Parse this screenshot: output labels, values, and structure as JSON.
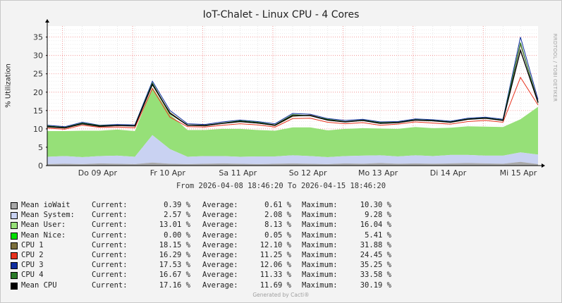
{
  "title": "IoT-Chalet - Linux CPU - 4 Cores",
  "vertical_label": "% Utilization",
  "watermark": "RRDTOOL / TOBI OETIKER",
  "range": "From 2026-04-08 18:46:20 To 2026-04-15 18:46:20",
  "footer": "Generated by Cacti®",
  "legend": {
    "columns": {
      "current": "Current:",
      "average": "Average:",
      "maximum": "Maximum:"
    },
    "items": [
      {
        "label": "Mean ioWait",
        "color": "#a8a8a8",
        "current": "0.39 %",
        "average": "0.61 %",
        "maximum": "10.30 %"
      },
      {
        "label": "Mean System:",
        "color": "#c9d2f2",
        "current": "2.57 %",
        "average": "2.08 %",
        "maximum": "9.28 %"
      },
      {
        "label": "Mean User:",
        "color": "#96e078",
        "current": "13.01 %",
        "average": "8.13 %",
        "maximum": "16.04 %"
      },
      {
        "label": "Mean Nice:",
        "color": "#00e000",
        "current": "0.00 %",
        "average": "0.05 %",
        "maximum": "5.41 %"
      },
      {
        "label": "CPU 1",
        "color": "#7b6f3c",
        "current": "18.15 %",
        "average": "12.10 %",
        "maximum": "31.88 %"
      },
      {
        "label": "CPU 2",
        "color": "#e8321e",
        "current": "16.29 %",
        "average": "11.25 %",
        "maximum": "24.45 %"
      },
      {
        "label": "CPU 3",
        "color": "#0f2d9e",
        "current": "17.53 %",
        "average": "12.06 %",
        "maximum": "35.25 %"
      },
      {
        "label": "CPU 4",
        "color": "#2a7a28",
        "current": "16.67 %",
        "average": "11.33 %",
        "maximum": "33.58 %"
      },
      {
        "label": "Mean CPU",
        "color": "#000000",
        "current": "17.16 %",
        "average": "11.69 %",
        "maximum": "30.19 %"
      }
    ]
  },
  "chart_data": {
    "type": "area",
    "title": "IoT-Chalet - Linux CPU - 4 Cores",
    "ylabel": "% Utilization",
    "xlabel": "",
    "ylim": [
      0,
      38
    ],
    "yticks": [
      0,
      5,
      10,
      15,
      20,
      25,
      30,
      35
    ],
    "x_range": [
      "2026-04-08 18:46:20",
      "2026-04-15 18:46:20"
    ],
    "xticks": [
      "Do 09 Apr",
      "Fr 10 Apr",
      "Sa 11 Apr",
      "So 12 Apr",
      "Mo 13 Apr",
      "Di 14 Apr",
      "Mi 15 Apr"
    ],
    "grid": true,
    "x_hours": [
      0,
      6,
      12,
      18,
      24,
      30,
      36,
      42,
      48,
      54,
      60,
      66,
      72,
      78,
      84,
      90,
      96,
      102,
      108,
      114,
      120,
      126,
      132,
      138,
      144,
      150,
      156,
      162,
      168
    ],
    "series": [
      {
        "name": "Mean ioWait",
        "style": "area",
        "values": [
          0.4,
          0.5,
          0.4,
          0.6,
          0.5,
          0.4,
          0.8,
          0.5,
          0.4,
          0.5,
          0.6,
          0.5,
          0.4,
          0.5,
          0.6,
          0.5,
          0.4,
          0.6,
          0.5,
          0.7,
          0.5,
          0.6,
          0.5,
          0.6,
          0.7,
          0.6,
          0.5,
          1.0,
          0.4
        ]
      },
      {
        "name": "Mean System:",
        "style": "area_stack",
        "values": [
          2.0,
          2.1,
          1.9,
          2.0,
          2.2,
          2.0,
          7.5,
          4.0,
          2.0,
          2.1,
          2.0,
          1.9,
          2.1,
          2.0,
          2.2,
          2.1,
          1.9,
          2.0,
          2.2,
          2.1,
          2.0,
          2.2,
          2.1,
          2.3,
          2.2,
          2.1,
          2.2,
          2.6,
          2.6
        ]
      },
      {
        "name": "Mean User:",
        "style": "area_stack",
        "values": [
          7.0,
          6.8,
          7.2,
          6.9,
          7.1,
          7.0,
          13.0,
          9.5,
          7.3,
          7.1,
          7.4,
          7.6,
          7.2,
          7.0,
          7.6,
          7.8,
          7.3,
          7.4,
          7.5,
          7.3,
          7.5,
          7.7,
          7.6,
          7.4,
          7.8,
          7.9,
          7.8,
          9.0,
          13.0
        ]
      },
      {
        "name": "CPU 1",
        "style": "line",
        "values": [
          10.5,
          10.2,
          11.3,
          10.6,
          10.9,
          10.8,
          22.0,
          14.5,
          11.0,
          10.8,
          11.5,
          12.0,
          11.6,
          10.9,
          13.4,
          13.8,
          12.5,
          11.9,
          12.3,
          11.5,
          11.7,
          12.4,
          12.2,
          11.8,
          12.6,
          12.9,
          12.3,
          33.0,
          17.5
        ]
      },
      {
        "name": "CPU 2",
        "style": "line",
        "values": [
          10.2,
          9.9,
          11.0,
          10.4,
          10.5,
          10.3,
          21.0,
          13.2,
          10.6,
          10.5,
          11.0,
          11.4,
          11.1,
          10.5,
          12.8,
          12.9,
          11.8,
          11.4,
          11.7,
          11.0,
          11.3,
          11.9,
          11.6,
          11.3,
          12.0,
          12.3,
          11.8,
          24.0,
          16.5
        ]
      },
      {
        "name": "CPU 3",
        "style": "line",
        "values": [
          11.0,
          10.6,
          11.8,
          11.0,
          11.2,
          11.1,
          23.0,
          15.0,
          11.4,
          11.2,
          11.9,
          12.4,
          12.0,
          11.4,
          14.2,
          14.0,
          12.8,
          12.3,
          12.6,
          11.9,
          12.0,
          12.7,
          12.5,
          12.1,
          12.9,
          13.2,
          12.6,
          35.0,
          18.0
        ]
      },
      {
        "name": "CPU 4",
        "style": "line",
        "values": [
          10.8,
          10.4,
          11.6,
          10.9,
          11.0,
          10.9,
          22.5,
          14.2,
          11.1,
          11.0,
          11.6,
          12.2,
          11.8,
          11.1,
          13.9,
          13.6,
          12.6,
          12.0,
          12.4,
          11.7,
          11.8,
          12.5,
          12.3,
          11.9,
          12.7,
          13.0,
          12.4,
          33.5,
          17.0
        ]
      },
      {
        "name": "Mean CPU",
        "style": "line",
        "values": [
          10.6,
          10.3,
          11.4,
          10.7,
          10.9,
          10.8,
          22.1,
          14.2,
          11.0,
          10.9,
          11.5,
          12.0,
          11.6,
          11.0,
          13.6,
          13.6,
          12.4,
          11.9,
          12.3,
          11.5,
          11.7,
          12.4,
          12.2,
          11.8,
          12.6,
          12.9,
          12.3,
          31.4,
          17.2
        ]
      }
    ]
  }
}
